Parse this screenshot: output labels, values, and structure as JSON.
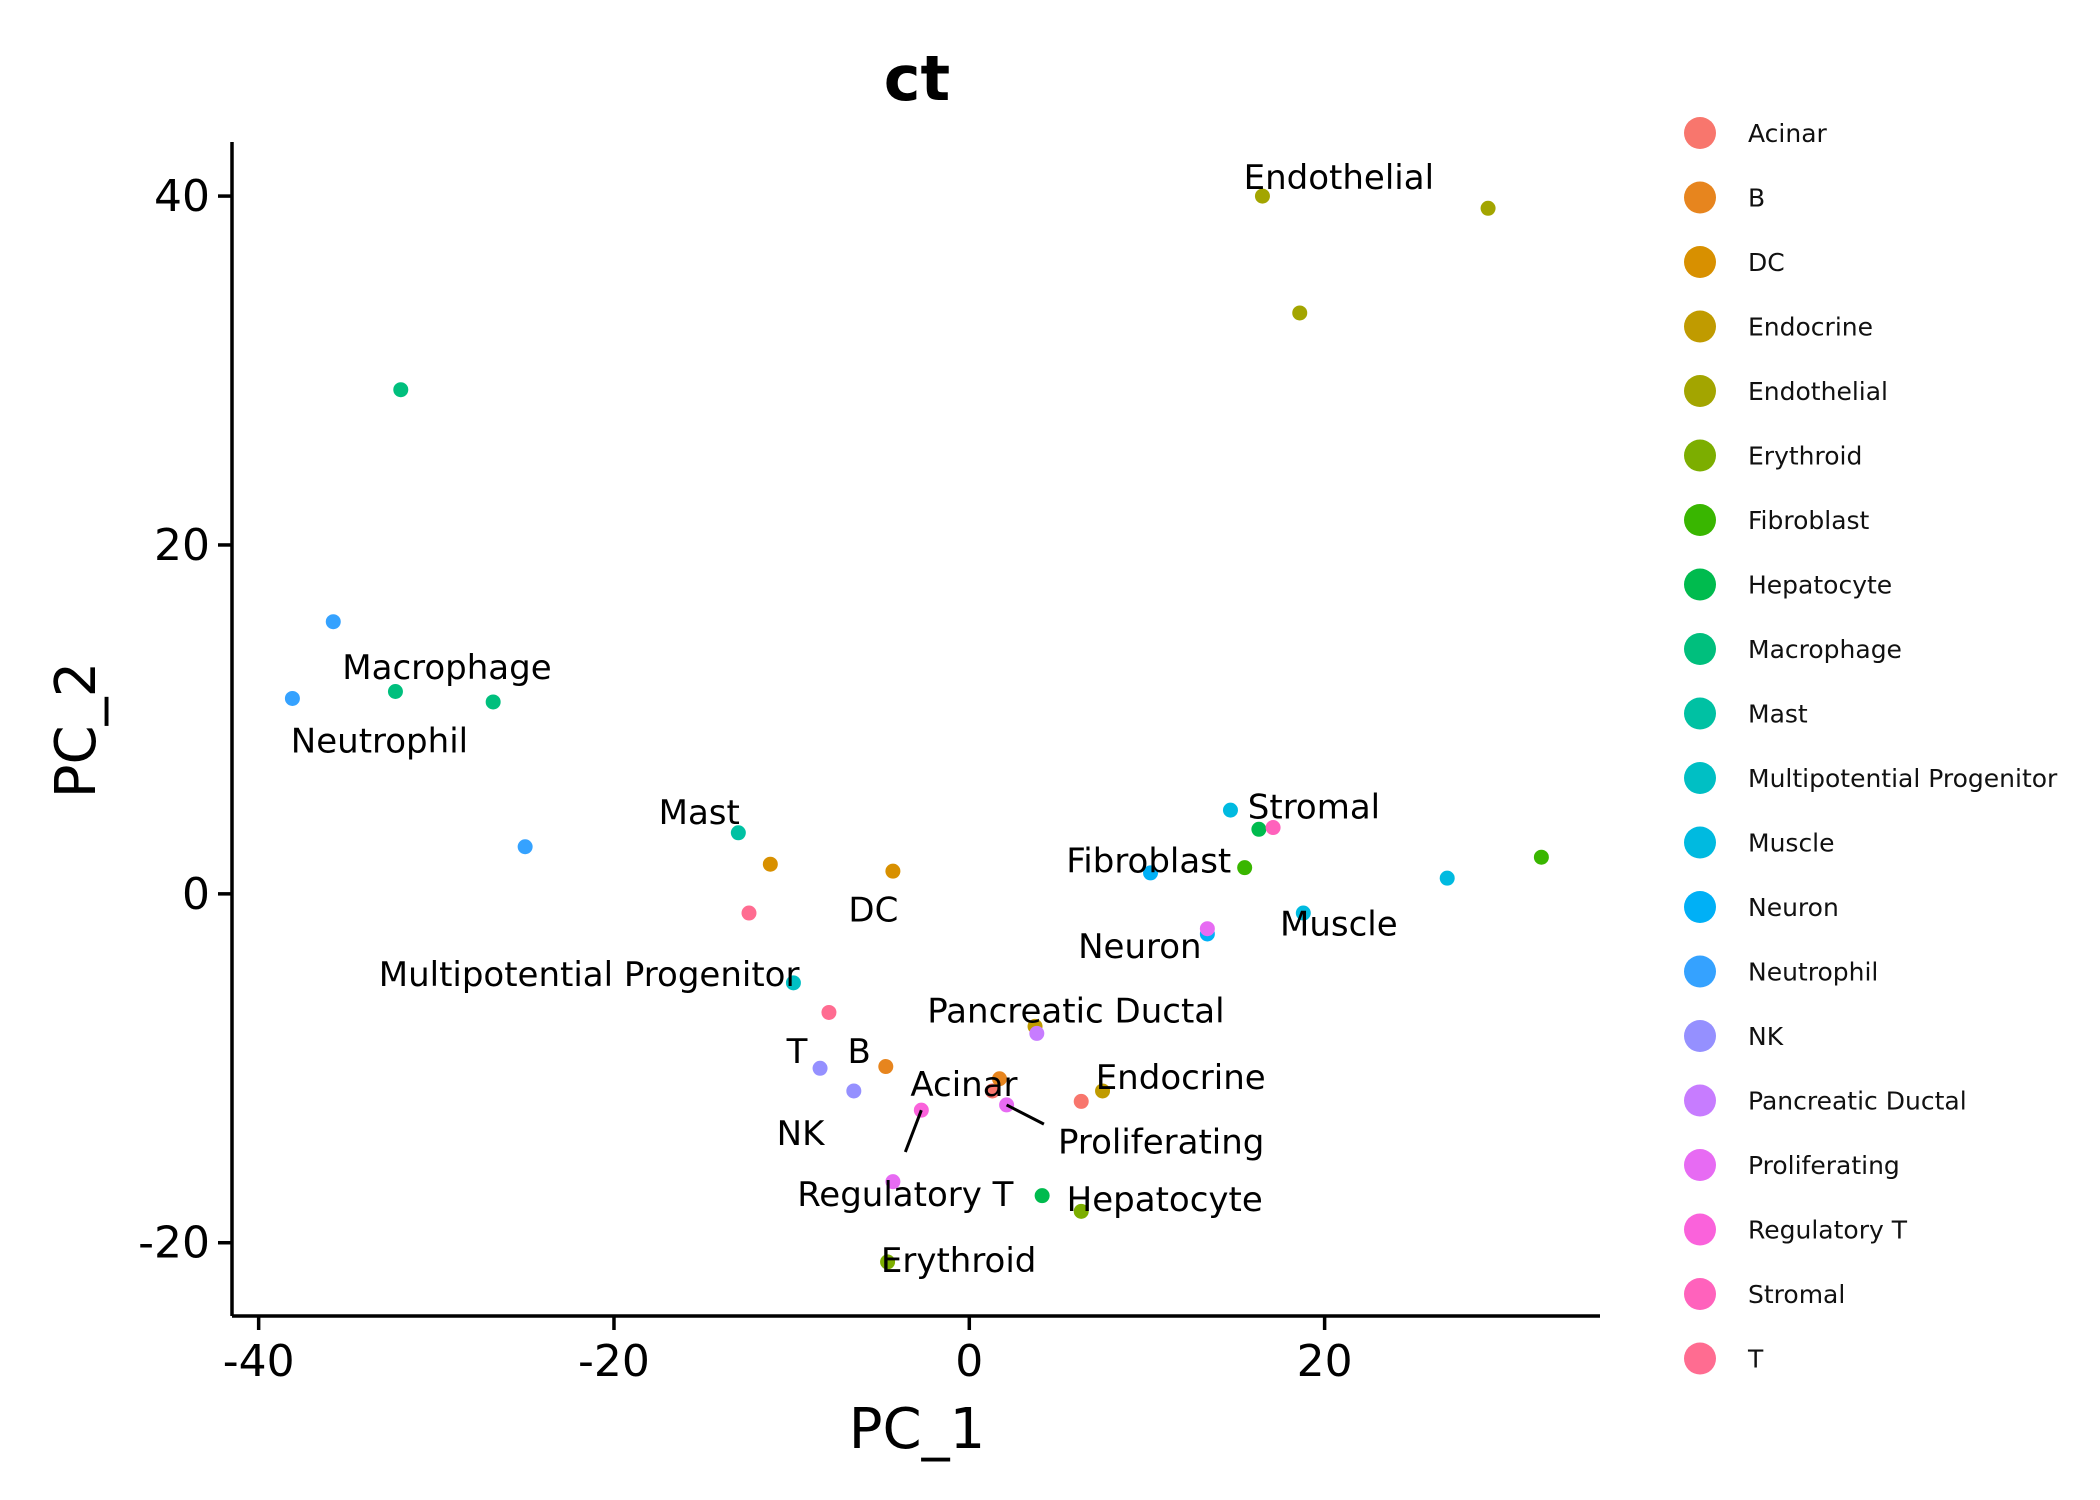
{
  "chart_data": {
    "type": "scatter",
    "title": "ct",
    "xlabel": "PC_1",
    "ylabel": "PC_2",
    "xlim": [
      -41.5,
      35.5
    ],
    "ylim": [
      -24.2,
      43.1
    ],
    "xticks": [
      -40,
      -20,
      0,
      20
    ],
    "yticks": [
      -20,
      0,
      20,
      40
    ],
    "xtick_labels": [
      "-40",
      "-20",
      "0",
      "20"
    ],
    "ytick_labels": [
      "-20",
      "0",
      "20",
      "40"
    ],
    "grid": false,
    "legend_position": "right",
    "series": [
      {
        "name": "Acinar",
        "color": "#F8766D",
        "points": [
          [
            1.3,
            -11.3
          ],
          [
            6.3,
            -11.9
          ]
        ]
      },
      {
        "name": "B",
        "color": "#E7851E",
        "points": [
          [
            -4.7,
            -9.9
          ],
          [
            1.7,
            -10.6
          ]
        ]
      },
      {
        "name": "DC",
        "color": "#D89000",
        "points": [
          [
            -11.2,
            1.7
          ],
          [
            -4.3,
            1.3
          ]
        ]
      },
      {
        "name": "Endocrine",
        "color": "#C09B00",
        "points": [
          [
            3.7,
            -7.6
          ],
          [
            7.5,
            -11.3
          ]
        ]
      },
      {
        "name": "Endothelial",
        "color": "#A3A500",
        "points": [
          [
            16.5,
            40.0
          ],
          [
            18.6,
            33.3
          ],
          [
            29.2,
            39.3
          ]
        ]
      },
      {
        "name": "Erythroid",
        "color": "#7CAE00",
        "points": [
          [
            -4.6,
            -21.1
          ],
          [
            6.3,
            -18.2
          ]
        ]
      },
      {
        "name": "Fibroblast",
        "color": "#39B600",
        "points": [
          [
            15.5,
            1.5
          ],
          [
            32.2,
            2.1
          ]
        ]
      },
      {
        "name": "Hepatocyte",
        "color": "#00BB4E",
        "points": [
          [
            4.1,
            -17.3
          ],
          [
            16.3,
            3.7
          ]
        ]
      },
      {
        "name": "Macrophage",
        "color": "#00BF7D",
        "points": [
          [
            -32.0,
            28.9
          ],
          [
            -32.3,
            11.6
          ],
          [
            -26.8,
            11.0
          ]
        ]
      },
      {
        "name": "Mast",
        "color": "#00C1A3",
        "points": [
          [
            -13.0,
            3.5
          ]
        ]
      },
      {
        "name": "Multipotential Progenitor",
        "color": "#00BFC4",
        "points": [
          [
            -9.9,
            -5.1
          ]
        ]
      },
      {
        "name": "Muscle",
        "color": "#00BAE0",
        "points": [
          [
            14.7,
            4.8
          ],
          [
            26.9,
            0.9
          ],
          [
            18.8,
            -1.1
          ]
        ]
      },
      {
        "name": "Neuron",
        "color": "#00B0F6",
        "points": [
          [
            10.2,
            1.2
          ],
          [
            13.4,
            -2.3
          ]
        ]
      },
      {
        "name": "Neutrophil",
        "color": "#35A2FF",
        "points": [
          [
            -35.8,
            15.6
          ],
          [
            -38.1,
            11.2
          ],
          [
            -25.0,
            2.7
          ]
        ]
      },
      {
        "name": "NK",
        "color": "#9590FF",
        "points": [
          [
            -8.4,
            -10.0
          ],
          [
            -6.5,
            -11.3
          ]
        ]
      },
      {
        "name": "Pancreatic Ductal",
        "color": "#C77CFF",
        "points": [
          [
            3.8,
            -8.0
          ]
        ]
      },
      {
        "name": "Proliferating",
        "color": "#E76BF3",
        "points": [
          [
            2.1,
            -12.1
          ],
          [
            13.4,
            -2.0
          ],
          [
            -4.3,
            -16.5
          ]
        ]
      },
      {
        "name": "Regulatory T",
        "color": "#FA62DB",
        "points": [
          [
            -2.7,
            -12.4
          ]
        ]
      },
      {
        "name": "Stromal",
        "color": "#FF62BC",
        "points": [
          [
            17.1,
            3.8
          ]
        ]
      },
      {
        "name": "T",
        "color": "#FF6C91",
        "points": [
          [
            -12.4,
            -1.1
          ],
          [
            -7.9,
            -6.8
          ]
        ]
      }
    ],
    "annotations": [
      {
        "text": "Endothelial",
        "x": 20.8,
        "y": 41.1,
        "anchor": "middle"
      },
      {
        "text": "Macrophage",
        "x": -29.4,
        "y": 13.0,
        "anchor": "middle"
      },
      {
        "text": "Neutrophil",
        "x": -33.2,
        "y": 8.8,
        "anchor": "middle"
      },
      {
        "text": "Mast",
        "x": -15.2,
        "y": 4.7,
        "anchor": "middle"
      },
      {
        "text": "DC",
        "x": -5.4,
        "y": -0.9,
        "anchor": "middle"
      },
      {
        "text": "Multipotential Progenitor",
        "x": -21.4,
        "y": -4.6,
        "anchor": "middle"
      },
      {
        "text": "Stromal",
        "x": 19.4,
        "y": 5.0,
        "anchor": "middle"
      },
      {
        "text": "Fibroblast",
        "x": 10.1,
        "y": 1.9,
        "anchor": "middle"
      },
      {
        "text": "Muscle",
        "x": 20.8,
        "y": -1.7,
        "anchor": "middle"
      },
      {
        "text": "Neuron",
        "x": 9.6,
        "y": -3.0,
        "anchor": "middle"
      },
      {
        "text": "Pancreatic Ductal",
        "x": 6.0,
        "y": -6.7,
        "anchor": "middle"
      },
      {
        "text": "T",
        "x": -9.7,
        "y": -9.0,
        "anchor": "middle"
      },
      {
        "text": "B",
        "x": -6.2,
        "y": -9.0,
        "anchor": "middle"
      },
      {
        "text": "Acinar",
        "x": -0.3,
        "y": -10.9,
        "anchor": "middle"
      },
      {
        "text": "Endocrine",
        "x": 11.9,
        "y": -10.5,
        "anchor": "middle"
      },
      {
        "text": "NK",
        "x": -9.5,
        "y": -13.7,
        "anchor": "middle"
      },
      {
        "text": "Proliferating",
        "x": 10.8,
        "y": -14.2,
        "anchor": "middle"
      },
      {
        "text": "Regulatory T",
        "x": -3.6,
        "y": -17.2,
        "anchor": "middle"
      },
      {
        "text": "Hepatocyte",
        "x": 11.0,
        "y": -17.5,
        "anchor": "middle"
      },
      {
        "text": "Erythroid",
        "x": -0.6,
        "y": -21.0,
        "anchor": "middle"
      }
    ],
    "label_lines": [
      {
        "from": [
          -2.7,
          -12.4
        ],
        "to": [
          -3.6,
          -14.8
        ]
      },
      {
        "from": [
          2.1,
          -12.1
        ],
        "to": [
          4.2,
          -13.2
        ]
      }
    ]
  }
}
